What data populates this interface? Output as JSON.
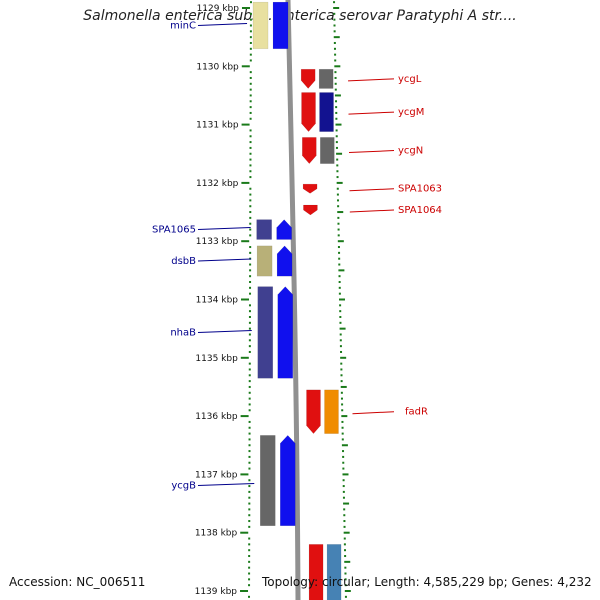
{
  "title": "Salmonella enterica subsp. enterica serovar Paratyphi A str....",
  "footer": {
    "accession": "Accession: NC_006511",
    "topology": "Topology: circular; Length: 4,585,229 bp; Genes: 4,232"
  },
  "colors": {
    "forward_label": "#00008b",
    "reverse_label": "#cc0000",
    "tick": "#1a7a1a",
    "backbone": "#909090"
  },
  "ruler": {
    "unit": "kbp",
    "ticks": [
      {
        "kbp": 1129,
        "label": "1129 kbp"
      },
      {
        "kbp": 1130,
        "label": "1130 kbp"
      },
      {
        "kbp": 1131,
        "label": "1131 kbp"
      },
      {
        "kbp": 1132,
        "label": "1132 kbp"
      },
      {
        "kbp": 1133,
        "label": "1133 kbp"
      },
      {
        "kbp": 1134,
        "label": "1134 kbp"
      },
      {
        "kbp": 1135,
        "label": "1135 kbp"
      },
      {
        "kbp": 1136,
        "label": "1136 kbp"
      },
      {
        "kbp": 1137,
        "label": "1137 kbp"
      },
      {
        "kbp": 1138,
        "label": "1138 kbp"
      },
      {
        "kbp": 1139,
        "label": "1139 kbp"
      }
    ]
  },
  "genes_forward": [
    {
      "name": "minC",
      "start_kbp": 1128.9,
      "end_kbp": 1129.7,
      "colors": [
        "#e8e0a0",
        "#1010ee"
      ],
      "arrow": false
    },
    {
      "name": "SPA1065",
      "start_kbp": 1132.63,
      "end_kbp": 1132.97,
      "colors": [
        "#404090",
        "#1010ee"
      ],
      "arrow": true
    },
    {
      "name": "dsbB",
      "start_kbp": 1133.08,
      "end_kbp": 1133.6,
      "colors": [
        "#b8b078",
        "#1010ee"
      ],
      "arrow": true
    },
    {
      "name": "nhaB",
      "start_kbp": 1133.78,
      "end_kbp": 1135.35,
      "colors": [
        "#404090",
        "#1010ee"
      ],
      "arrow": true
    },
    {
      "name": "ycgB",
      "start_kbp": 1136.33,
      "end_kbp": 1137.88,
      "colors": [
        "#666666",
        "#1010ee"
      ],
      "arrow": true
    }
  ],
  "genes_reverse": [
    {
      "name": "ycgL",
      "start_kbp": 1130.05,
      "end_kbp": 1130.38,
      "colors": [
        "#e01010",
        "#666666"
      ],
      "arrow": true
    },
    {
      "name": "ycgM",
      "start_kbp": 1130.45,
      "end_kbp": 1131.12,
      "colors": [
        "#e01010",
        "#121290"
      ],
      "arrow": true
    },
    {
      "name": "ycgN",
      "start_kbp": 1131.22,
      "end_kbp": 1131.67,
      "colors": [
        "#e01010",
        "#666666"
      ],
      "arrow": true
    },
    {
      "name": "SPA1063",
      "start_kbp": 1132.02,
      "end_kbp": 1132.18,
      "colors": [
        "#e01010"
      ],
      "arrow": true
    },
    {
      "name": "SPA1064",
      "start_kbp": 1132.38,
      "end_kbp": 1132.55,
      "colors": [
        "#e01010"
      ],
      "arrow": true
    },
    {
      "name": "fadR",
      "start_kbp": 1135.55,
      "end_kbp": 1136.3,
      "colors": [
        "#e01010",
        "#f08c00"
      ],
      "arrow": true
    },
    {
      "name": "",
      "start_kbp": 1138.2,
      "end_kbp": 1139.2,
      "colors": [
        "#e01010",
        "#4682b4"
      ],
      "arrow": false
    }
  ]
}
